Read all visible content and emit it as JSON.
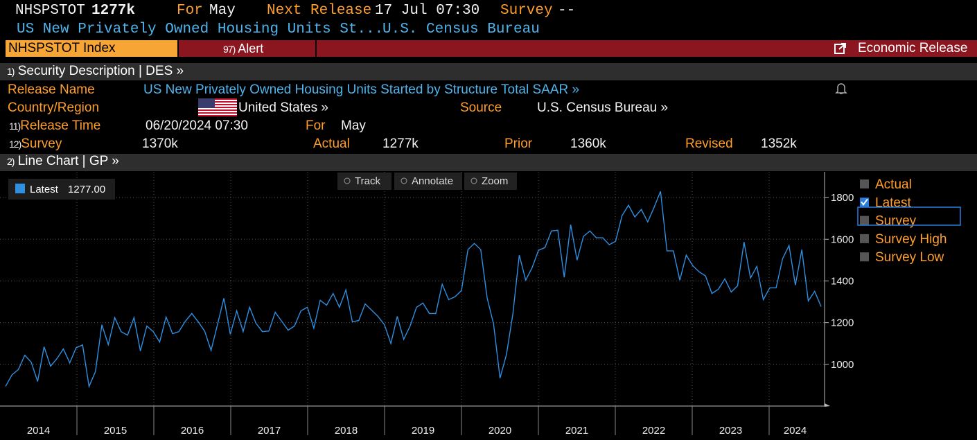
{
  "header": {
    "ticker": "NHSPSTOT",
    "last": "1277k",
    "for_label": "For",
    "for_value": "May",
    "next_release_label": "Next Release",
    "next_release_value": "17 Jul 07:30",
    "survey_label": "Survey",
    "survey_value": "--",
    "description": "US New Privately Owned Housing Units St...",
    "source": "U.S. Census Bureau"
  },
  "toolbar": {
    "index": "NHSPSTOT Index",
    "alert_num": "97)",
    "alert": "Alert",
    "economic_release": "Economic Release"
  },
  "security": {
    "num": "1)",
    "title": "Security Description",
    "code": "| DES »",
    "release_name_label": "Release Name",
    "release_name": "US New Privately Owned Housing Units Started by Structure Total SAAR »",
    "country_label": "Country/Region",
    "country": "United States »",
    "source_label": "Source",
    "source": "U.S. Census Bureau »",
    "release_time_num": "11)",
    "release_time_label": "Release Time",
    "release_time": "06/20/2024 07:30",
    "for_label": "For",
    "for_value": "May",
    "survey_num": "12)",
    "survey_label": "Survey",
    "survey": "1370k",
    "actual_label": "Actual",
    "actual": "1277k",
    "prior_label": "Prior",
    "prior": "1360k",
    "revised_label": "Revised",
    "revised": "1352k"
  },
  "chart_section": {
    "num": "2)",
    "title": "Line Chart | GP »",
    "tools": [
      "Track",
      "Annotate",
      "Zoom"
    ]
  },
  "chart_data": {
    "type": "line",
    "series": [
      {
        "name": "Latest",
        "color": "#2f8fe0",
        "value_label": "1277.00",
        "values": [
          894,
          950,
          975,
          1044,
          1010,
          918,
          1084,
          991,
          1027,
          1074,
          1007,
          1080,
          1093,
          894,
          965,
          1190,
          1094,
          1224,
          1157,
          1140,
          1224,
          1064,
          1184,
          1157,
          1107,
          1227,
          1147,
          1157,
          1207,
          1244,
          1204,
          1160,
          1067,
          1190,
          1317,
          1144,
          1257,
          1157,
          1274,
          1197,
          1157,
          1160,
          1250,
          1207,
          1164,
          1184,
          1257,
          1274,
          1174,
          1307,
          1284,
          1340,
          1274,
          1357,
          1204,
          1210,
          1290,
          1260,
          1230,
          1190,
          1100,
          1230,
          1120,
          1184,
          1274,
          1294,
          1244,
          1244,
          1384,
          1310,
          1324,
          1354,
          1550,
          1580,
          1550,
          1317,
          1194,
          934,
          1047,
          1240,
          1524,
          1404,
          1464,
          1547,
          1560,
          1640,
          1643,
          1417,
          1670,
          1500,
          1614,
          1640,
          1607,
          1607,
          1574,
          1590,
          1713,
          1763,
          1707,
          1743,
          1683,
          1753,
          1830,
          1544,
          1544,
          1404,
          1524,
          1474,
          1444,
          1424,
          1340,
          1360,
          1410,
          1347,
          1377,
          1587,
          1414,
          1470,
          1310,
          1367,
          1367,
          1507,
          1570,
          1380,
          1550,
          1304,
          1350,
          1277
        ]
      }
    ],
    "year_labels": [
      "2014",
      "2015",
      "2016",
      "2017",
      "2018",
      "2019",
      "2020",
      "2021",
      "2022",
      "2023",
      "2024"
    ],
    "ylim": [
      800,
      1920
    ],
    "yticks": [
      1000,
      1200,
      1400,
      1600,
      1800
    ],
    "grid": true,
    "legend_items": [
      {
        "name": "Actual",
        "checked": false
      },
      {
        "name": "Latest",
        "checked": true
      },
      {
        "name": "Survey",
        "checked": false
      },
      {
        "name": "Survey High",
        "checked": false
      },
      {
        "name": "Survey Low",
        "checked": false
      }
    ]
  }
}
